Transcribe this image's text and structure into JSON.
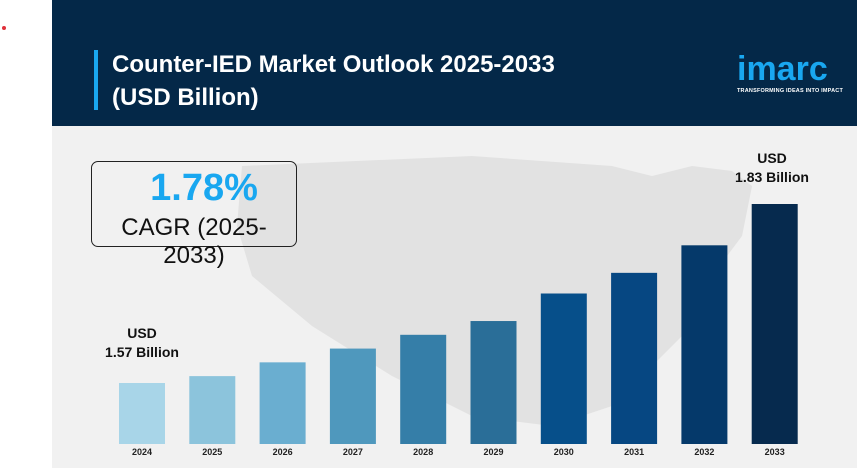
{
  "header": {
    "title_line1": "Counter-IED Market Outlook 2025-2033",
    "title_line2": "(USD Billion)"
  },
  "logo": {
    "word": "imarc",
    "tagline": "TRANSFORMING IDEAS INTO IMPACT"
  },
  "cagr": {
    "value": "1.78%",
    "label": "CAGR (2025-2033)"
  },
  "annotations": {
    "start": {
      "line1": "USD",
      "line2": "1.57 Billion"
    },
    "end": {
      "line1": "USD",
      "line2": "1.83 Billion"
    }
  },
  "colors": {
    "header": "#042848",
    "accent": "#19a7f0",
    "background": "#f1f1f1"
  },
  "chart_data": {
    "type": "bar",
    "title": "Counter-IED Market Outlook 2025-2033 (USD Billion)",
    "categories": [
      "2024",
      "2025",
      "2026",
      "2027",
      "2028",
      "2029",
      "2030",
      "2031",
      "2032",
      "2033"
    ],
    "values": [
      1.57,
      1.58,
      1.6,
      1.62,
      1.64,
      1.66,
      1.7,
      1.73,
      1.77,
      1.83
    ],
    "colors": [
      "#a8d5e8",
      "#8cc4dc",
      "#6aaed0",
      "#4f98bd",
      "#357ea8",
      "#2a6e98",
      "#064f8a",
      "#064782",
      "#05396a",
      "#062a4e"
    ],
    "xlabel": "",
    "ylabel": "",
    "grid": false
  }
}
